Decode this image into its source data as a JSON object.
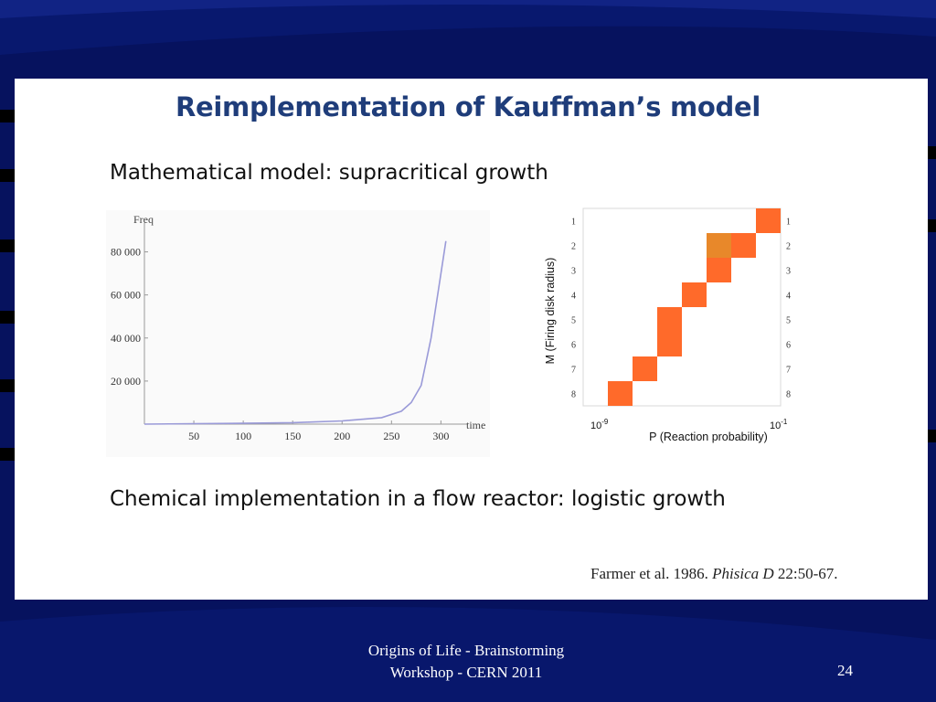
{
  "slide": {
    "title": "Reimplementation of Kauffman’s model",
    "line1": "Mathematical model: supracritical growth",
    "line2": "Chemical implementation in a flow reactor: logistic growth",
    "citation": {
      "prefix": "Farmer et al. 1986. ",
      "journal": "Phisica D",
      "suffix": " 22:50-67."
    },
    "footer": {
      "line1": "Origins of Life - Brainstorming",
      "line2": "Workshop - CERN 2011"
    },
    "slide_number": "24",
    "colors": {
      "background": "#06125e",
      "title": "#1f3d7a",
      "curve": "#9a9ad8",
      "cell": "#ff6a2a",
      "cell_highlight": "#e8882a"
    }
  },
  "chart_data": [
    {
      "type": "line",
      "ylabel": "Freq",
      "xlabel": "time",
      "x_ticks": [
        "50",
        "100",
        "150",
        "200",
        "250",
        "300"
      ],
      "y_ticks": [
        "20 000",
        "40 000",
        "60 000",
        "80 000"
      ],
      "xlim": [
        0,
        320
      ],
      "ylim": [
        0,
        90000
      ],
      "x": [
        0,
        50,
        100,
        150,
        200,
        240,
        260,
        270,
        280,
        290,
        295,
        300,
        305
      ],
      "y": [
        0,
        200,
        400,
        700,
        1500,
        3000,
        6000,
        10000,
        18000,
        40000,
        55000,
        70000,
        85000
      ]
    },
    {
      "type": "heatmap",
      "xlabel": "P (Reaction probability)",
      "ylabel": "M (Firing disk radius)",
      "x_ticks": [
        {
          "base": "10",
          "exp": "-9"
        },
        {
          "base": "10",
          "exp": "-1"
        }
      ],
      "y_ticks": [
        "1",
        "2",
        "3",
        "4",
        "5",
        "6",
        "7",
        "8"
      ],
      "cells": [
        {
          "col": 7,
          "row": 1,
          "shade": "cell"
        },
        {
          "col": 5,
          "row": 2,
          "shade": "cell_highlight"
        },
        {
          "col": 6,
          "row": 2,
          "shade": "cell"
        },
        {
          "col": 5,
          "row": 3,
          "shade": "cell"
        },
        {
          "col": 4,
          "row": 4,
          "shade": "cell"
        },
        {
          "col": 3,
          "row": 5,
          "shade": "cell"
        },
        {
          "col": 3,
          "row": 6,
          "shade": "cell"
        },
        {
          "col": 2,
          "row": 7,
          "shade": "cell"
        },
        {
          "col": 1,
          "row": 8,
          "shade": "cell"
        }
      ]
    }
  ]
}
